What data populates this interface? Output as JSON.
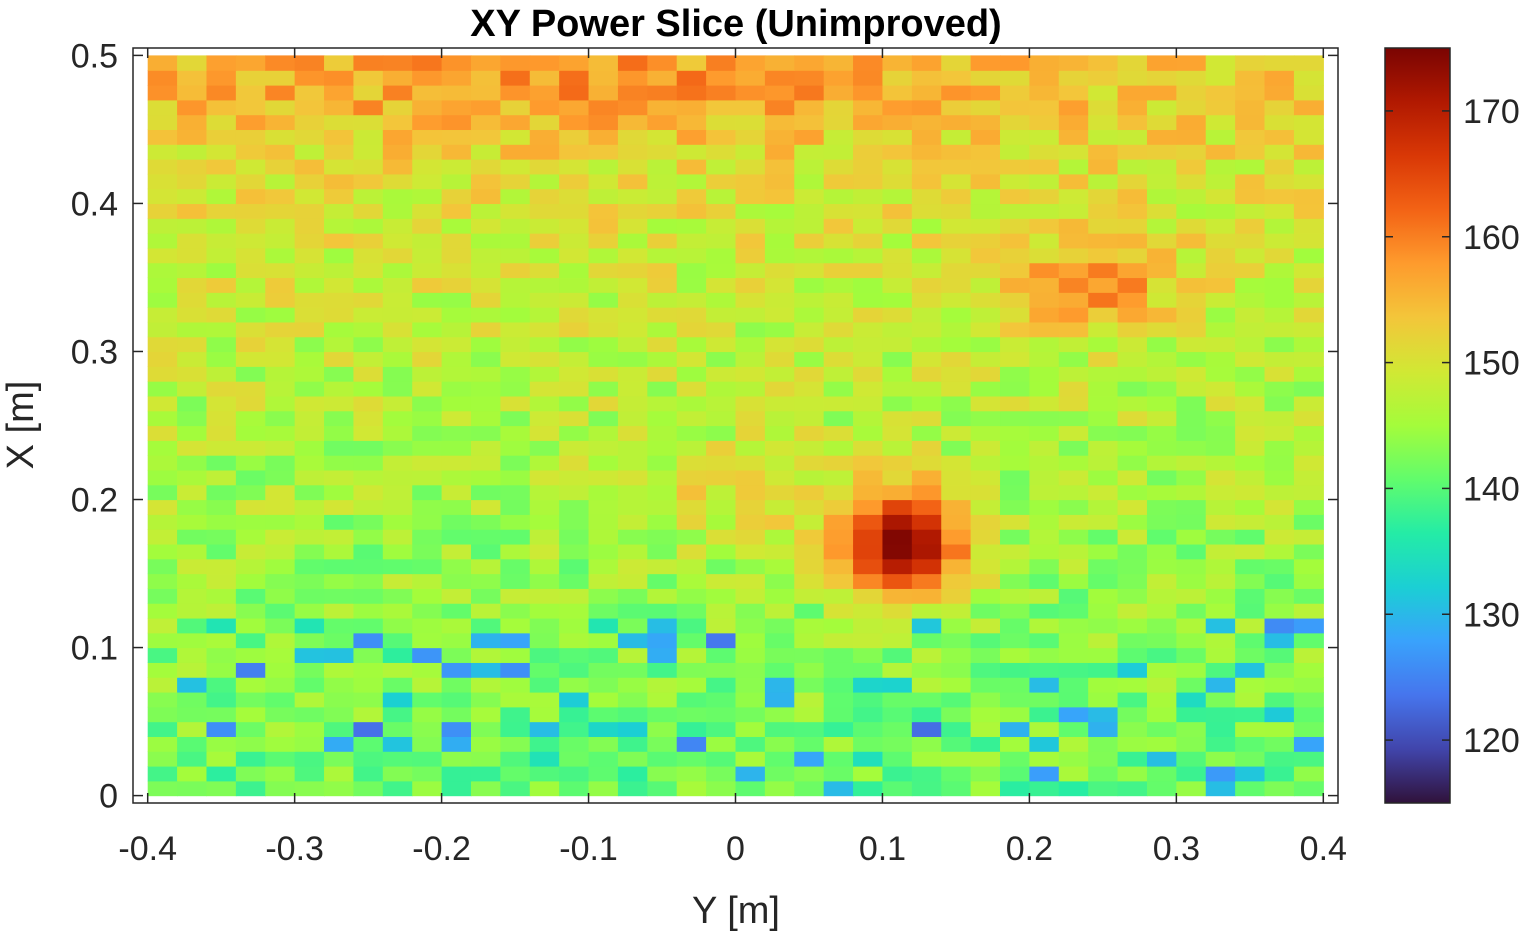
{
  "chart_data": {
    "type": "heatmap",
    "title": "XY Power Slice (Unimproved)",
    "xlabel": "Y [m]",
    "ylabel": "X [m]",
    "xlim": [
      -0.41,
      0.41
    ],
    "ylim": [
      -0.005,
      0.505
    ],
    "x_ticks": [
      -0.4,
      -0.3,
      -0.2,
      -0.1,
      0,
      0.1,
      0.2,
      0.3,
      0.4
    ],
    "x_tick_labels": [
      "-0.4",
      "-0.3",
      "-0.2",
      "-0.1",
      "0",
      "0.1",
      "0.2",
      "0.3",
      "0.4"
    ],
    "y_ticks": [
      0,
      0.1,
      0.2,
      0.3,
      0.4,
      0.5
    ],
    "y_tick_labels": [
      "0",
      "0.1",
      "0.2",
      "0.3",
      "0.4",
      "0.5"
    ],
    "x_range": [
      -0.4,
      0.4
    ],
    "y_range": [
      0,
      0.5
    ],
    "n_cols": 40,
    "n_rows": 50,
    "colormap": "turbo",
    "colormap_stops": [
      "#30123b",
      "#4145ab",
      "#4675ed",
      "#39a2fc",
      "#1bcfd4",
      "#24eca6",
      "#61fc6c",
      "#a4fc3b",
      "#d1e834",
      "#f3c63a",
      "#fe9b2d",
      "#f36315",
      "#d93806",
      "#b11901",
      "#7a0402"
    ],
    "clim": [
      115,
      175
    ],
    "colorbar_ticks": [
      120,
      130,
      140,
      150,
      160,
      170
    ],
    "colorbar_tick_labels": [
      "120",
      "130",
      "140",
      "150",
      "160",
      "170"
    ],
    "grid": false,
    "features": [
      {
        "name": "hotspot",
        "x": 0.115,
        "y": 0.17,
        "peak": 175,
        "sx": 0.03,
        "sy": 0.027
      },
      {
        "name": "upper-right-ridge",
        "x": 0.24,
        "y": 0.345,
        "peak": 11,
        "sx": 0.04,
        "sy": 0.02
      },
      {
        "name": "top-band",
        "x": -0.1,
        "y": 0.485,
        "peak": 6,
        "sx": 0.25,
        "sy": 0.03
      },
      {
        "name": "mid-warm",
        "x": 0.0,
        "y": 0.2,
        "peak": 5,
        "sx": 0.05,
        "sy": 0.03
      }
    ]
  }
}
